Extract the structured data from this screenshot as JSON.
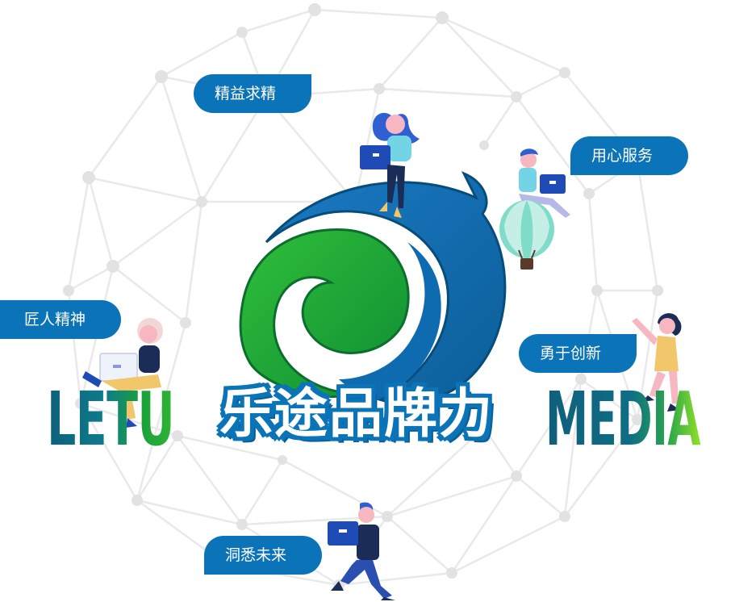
{
  "tags": {
    "t1": "精益求精",
    "t2": "用心服务",
    "t3": "匠人精神",
    "t4": "勇于创新",
    "t5": "洞悉未来"
  },
  "words": {
    "left": "LETU",
    "center": "乐途品牌力",
    "right": "MEDIA"
  },
  "colors": {
    "accent_blue": "#0b74b8",
    "brand_green": "#1ea83a",
    "network_gray": "#e6e6e6"
  },
  "icons": [
    "network-sphere-icon",
    "swirl-logo-icon",
    "laptop-icon",
    "hot-air-balloon-icon"
  ]
}
